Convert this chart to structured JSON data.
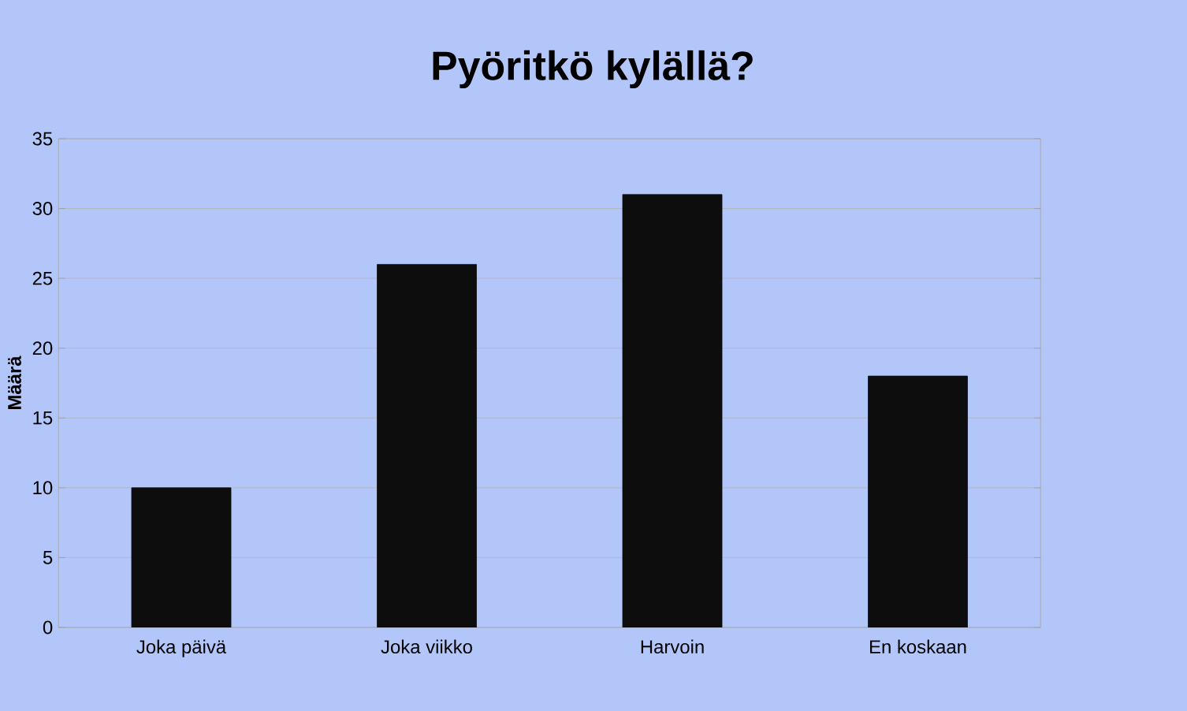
{
  "chart_data": {
    "type": "bar",
    "title": "Pyöritkö kylällä?",
    "ylabel": "Määrä",
    "categories": [
      "Joka päivä",
      "Joka viikko",
      "Harvoin",
      "En koskaan"
    ],
    "values": [
      10,
      26,
      31,
      18
    ],
    "color": "#0d0d0d",
    "ylim": [
      0,
      35
    ],
    "yticks": [
      0,
      5,
      10,
      15,
      20,
      25,
      30,
      35
    ],
    "grid": "y"
  }
}
